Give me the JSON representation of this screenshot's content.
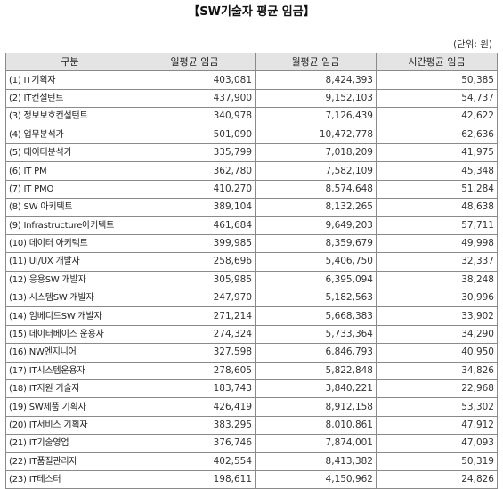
{
  "title": "【SW기술자 평균 임금】",
  "unit": "(단위: 원)",
  "table": {
    "headers": [
      "구분",
      "일평균 임금",
      "월평균 임금",
      "시간평균 임금"
    ],
    "rows": [
      [
        "(1) IT기획자",
        "403,081",
        "8,424,393",
        "50,385"
      ],
      [
        "(2) IT컨설턴트",
        "437,900",
        "9,152,103",
        "54,737"
      ],
      [
        "(3) 정보보호컨설턴트",
        "340,978",
        "7,126,439",
        "42,622"
      ],
      [
        "(4) 업무분석가",
        "501,090",
        "10,472,778",
        "62,636"
      ],
      [
        "(5) 데이터분석가",
        "335,799",
        "7,018,209",
        "41,975"
      ],
      [
        "(6) IT PM",
        "362,780",
        "7,582,109",
        "45,348"
      ],
      [
        "(7) IT PMO",
        "410,270",
        "8,574,648",
        "51,284"
      ],
      [
        "(8) SW 아키텍트",
        "389,104",
        "8,132,265",
        "48,638"
      ],
      [
        "(9) Infrastructure아키텍트",
        "461,684",
        "9,649,203",
        "57,711"
      ],
      [
        "(10) 데이터 아키텍트",
        "399,985",
        "8,359,679",
        "49,998"
      ],
      [
        "(11) UI/UX 개발자",
        "258,696",
        "5,406,750",
        "32,337"
      ],
      [
        "(12) 응용SW 개발자",
        "305,985",
        "6,395,094",
        "38,248"
      ],
      [
        "(13) 시스템SW 개발자",
        "247,970",
        "5,182,563",
        "30,996"
      ],
      [
        "(14) 임베디드SW 개발자",
        "271,214",
        "5,668,383",
        "33,902"
      ],
      [
        "(15) 데이터베이스 운용자",
        "274,324",
        "5,733,364",
        "34,290"
      ],
      [
        "(16) NW엔지니어",
        "327,598",
        "6,846,793",
        "40,950"
      ],
      [
        "(17) IT시스템운용자",
        "278,605",
        "5,822,848",
        "34,826"
      ],
      [
        "(18) IT지원 기술자",
        "183,743",
        "3,840,221",
        "22,968"
      ],
      [
        "(19) SW제품 기획자",
        "426,419",
        "8,912,158",
        "53,302"
      ],
      [
        "(20) IT서비스 기획자",
        "383,295",
        "8,010,861",
        "47,912"
      ],
      [
        "(21) IT기술영업",
        "376,746",
        "7,874,001",
        "47,093"
      ],
      [
        "(22) IT품질관리자",
        "402,554",
        "8,413,382",
        "50,319"
      ],
      [
        "(23) IT테스터",
        "198,611",
        "4,150,962",
        "24,826"
      ]
    ]
  }
}
